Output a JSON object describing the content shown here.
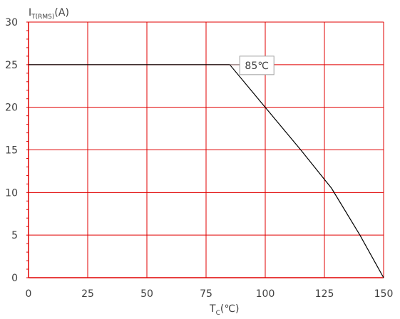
{
  "chart_data": {
    "type": "line",
    "title": "",
    "xlabel": "T",
    "xlabel_sub": "C",
    "xlabel_suffix": "(℃)",
    "ylabel": "I",
    "ylabel_sub": "T(RMS)",
    "ylabel_suffix": "(A)",
    "xlim": [
      0,
      150
    ],
    "ylim": [
      0,
      30
    ],
    "x_ticks": [
      0,
      25,
      50,
      75,
      100,
      125,
      150
    ],
    "y_ticks": [
      0,
      5,
      10,
      15,
      20,
      25,
      30
    ],
    "x_tick_labels": [
      "0",
      "25",
      "50",
      "75",
      "100",
      "125",
      "150"
    ],
    "y_tick_labels": [
      "0",
      "5",
      "10",
      "15",
      "20",
      "25",
      "30"
    ],
    "grid": true,
    "legend": "none",
    "grid_color": "#e00000",
    "line_color": "#000000",
    "series": [
      {
        "x": [
          0,
          85,
          100,
          115,
          128,
          140,
          150
        ],
        "y": [
          25,
          25,
          20,
          15,
          10.5,
          5,
          0
        ]
      }
    ],
    "annotations": [
      {
        "text": "85℃",
        "x": 85,
        "y": 25
      }
    ]
  }
}
